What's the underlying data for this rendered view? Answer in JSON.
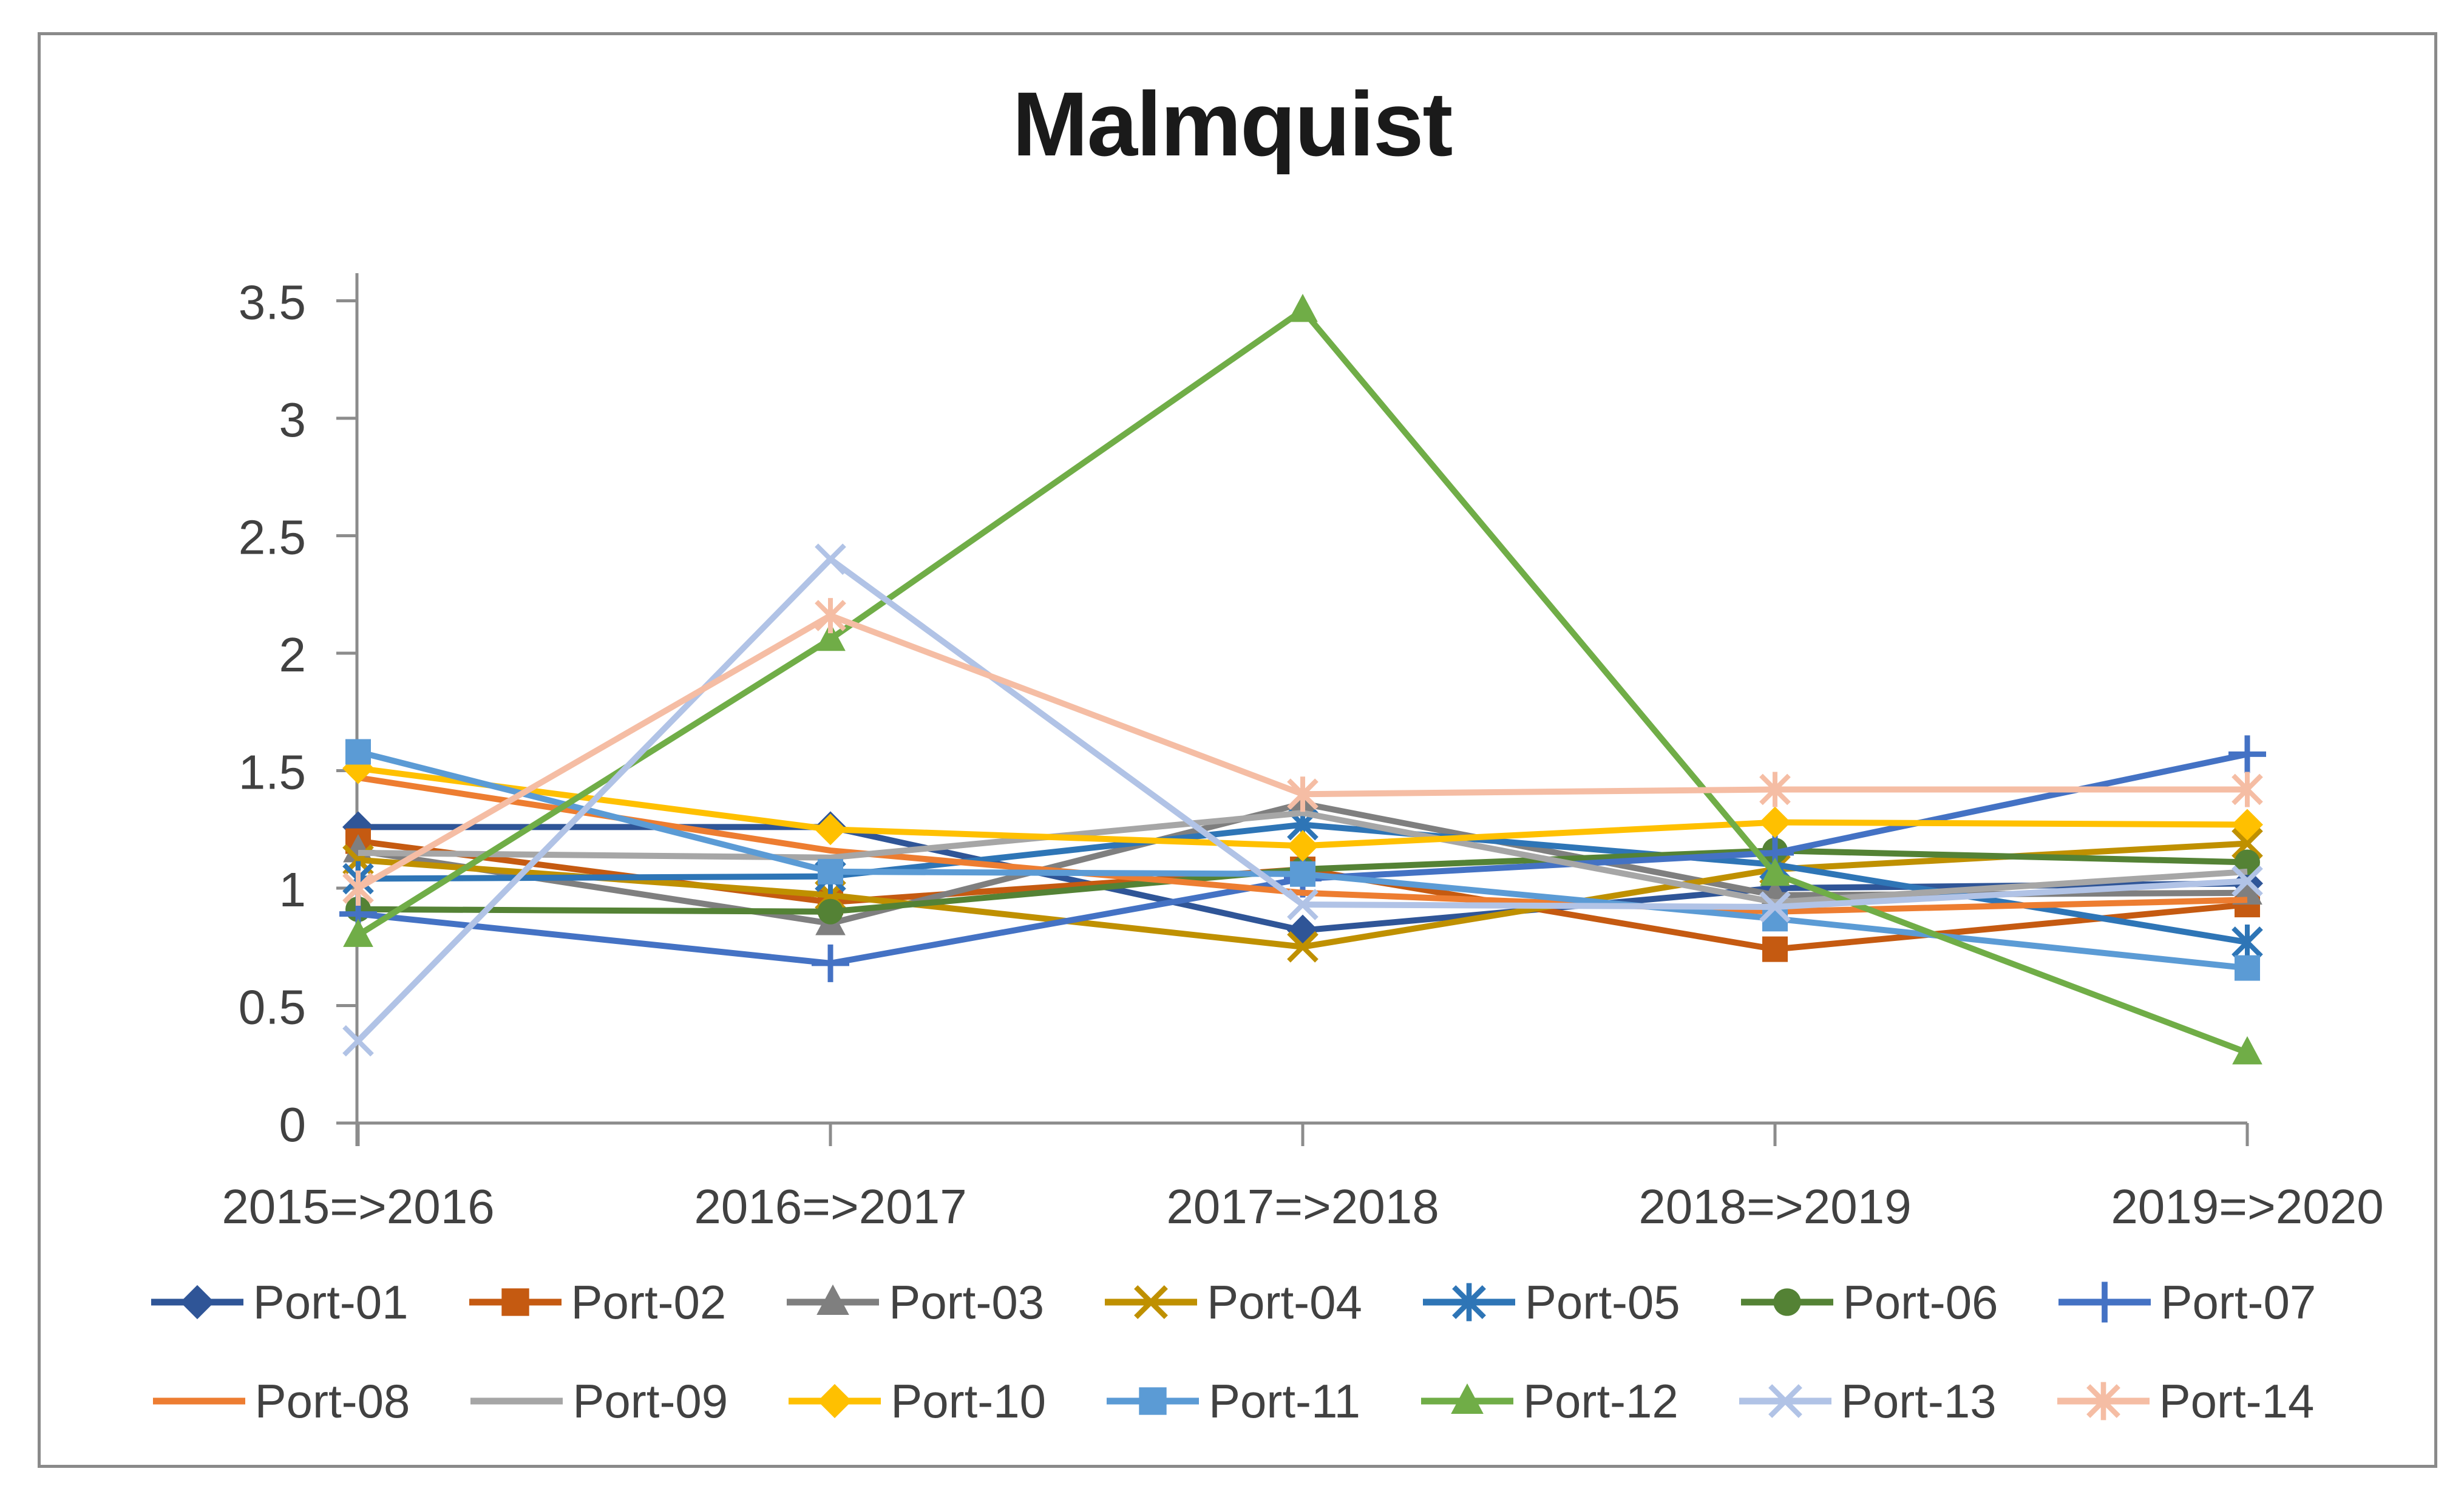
{
  "title": "Malmquist",
  "chart_data": {
    "type": "line",
    "title": "Malmquist",
    "categories": [
      "2015=>2016",
      "2016=>2017",
      "2017=>2018",
      "2018=>2019",
      "2019=>2020"
    ],
    "y_tick_labels": [
      "0",
      "0.5",
      "1",
      "1.5",
      "2",
      "2.5",
      "3",
      "3.5"
    ],
    "ylim": [
      0,
      3.5
    ],
    "grid": false,
    "legend_position": "bottom-two-rows",
    "legend_rows": [
      7,
      7
    ],
    "series": [
      {
        "name": "Port-01",
        "color": "#2F5597",
        "marker": "diamond",
        "values": [
          1.26,
          1.26,
          0.82,
          1.0,
          1.02
        ]
      },
      {
        "name": "Port-02",
        "color": "#C55A11",
        "marker": "square",
        "values": [
          1.2,
          0.94,
          1.08,
          0.74,
          0.93
        ]
      },
      {
        "name": "Port-03",
        "color": "#7F7F7F",
        "marker": "triangle",
        "values": [
          1.16,
          0.85,
          1.36,
          0.97,
          0.98
        ]
      },
      {
        "name": "Port-04",
        "color": "#BF9000",
        "marker": "x",
        "values": [
          1.12,
          0.97,
          0.75,
          1.08,
          1.19
        ]
      },
      {
        "name": "Port-05",
        "color": "#2E75B6",
        "marker": "asterisk",
        "values": [
          1.04,
          1.05,
          1.27,
          1.1,
          0.77
        ]
      },
      {
        "name": "Port-06",
        "color": "#548235",
        "marker": "circle",
        "values": [
          0.91,
          0.9,
          1.08,
          1.16,
          1.11
        ]
      },
      {
        "name": "Port-07",
        "color": "#4472C4",
        "marker": "plus",
        "values": [
          0.89,
          0.68,
          1.04,
          1.15,
          1.57
        ]
      },
      {
        "name": "Port-08",
        "color": "#ED7D31",
        "marker": "none",
        "values": [
          1.47,
          1.16,
          0.98,
          0.9,
          0.95
        ]
      },
      {
        "name": "Port-09",
        "color": "#A6A6A6",
        "marker": "none",
        "values": [
          1.15,
          1.13,
          1.32,
          0.94,
          1.07
        ]
      },
      {
        "name": "Port-10",
        "color": "#FFC000",
        "marker": "diamond",
        "values": [
          1.51,
          1.25,
          1.18,
          1.28,
          1.27
        ]
      },
      {
        "name": "Port-11",
        "color": "#5B9BD5",
        "marker": "square",
        "values": [
          1.58,
          1.07,
          1.06,
          0.87,
          0.66
        ]
      },
      {
        "name": "Port-12",
        "color": "#70AD47",
        "marker": "triangle",
        "values": [
          0.8,
          2.06,
          3.46,
          1.06,
          0.3
        ]
      },
      {
        "name": "Port-13",
        "color": "#B1C3E6",
        "marker": "x",
        "values": [
          0.35,
          2.4,
          0.93,
          0.92,
          1.03
        ]
      },
      {
        "name": "Port-14",
        "color": "#F5BDA4",
        "marker": "asterisk",
        "values": [
          1.0,
          2.16,
          1.4,
          1.42,
          1.42
        ]
      }
    ]
  },
  "colors": {
    "axis": "#8C8C8C",
    "tick_text": "#414141",
    "title_text": "#1A1A1A",
    "border": "#8A8A8A",
    "background": "#FFFFFF"
  }
}
